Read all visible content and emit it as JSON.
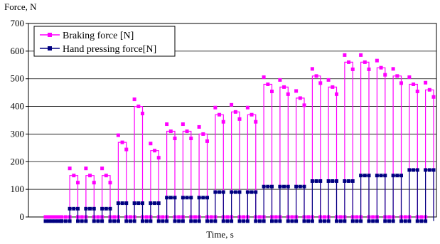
{
  "chart_data": {
    "type": "line",
    "title": "",
    "ylabel": "Force, N",
    "xlabel": "Time, s",
    "ylim": [
      0,
      700
    ],
    "yticks": [
      0,
      100,
      200,
      300,
      400,
      500,
      600,
      700
    ],
    "grid": "horizontal",
    "legend_position": "top-left",
    "series": [
      {
        "name": "Braking force [N]",
        "color": "#ff00ff",
        "marker": "square",
        "steps": [
          {
            "t": 0,
            "v": 0
          },
          {
            "t": 3,
            "v": 0
          },
          {
            "t": 4.5,
            "v": 150
          },
          {
            "t": 6,
            "v": 0
          },
          {
            "t": 7.5,
            "v": 150
          },
          {
            "t": 9,
            "v": 0
          },
          {
            "t": 10.5,
            "v": 150
          },
          {
            "t": 12,
            "v": 0
          },
          {
            "t": 13.5,
            "v": 270
          },
          {
            "t": 15,
            "v": 0
          },
          {
            "t": 16.5,
            "v": 400
          },
          {
            "t": 18,
            "v": 0
          },
          {
            "t": 19.5,
            "v": 240
          },
          {
            "t": 21,
            "v": 0
          },
          {
            "t": 22.5,
            "v": 310
          },
          {
            "t": 24,
            "v": 0
          },
          {
            "t": 25.5,
            "v": 310
          },
          {
            "t": 27,
            "v": 0
          },
          {
            "t": 28.5,
            "v": 300
          },
          {
            "t": 30,
            "v": 0
          },
          {
            "t": 31.5,
            "v": 370
          },
          {
            "t": 33,
            "v": 0
          },
          {
            "t": 34.5,
            "v": 380
          },
          {
            "t": 36,
            "v": 0
          },
          {
            "t": 37.5,
            "v": 370
          },
          {
            "t": 39,
            "v": 0
          },
          {
            "t": 40.5,
            "v": 480
          },
          {
            "t": 42,
            "v": 0
          },
          {
            "t": 43.5,
            "v": 470
          },
          {
            "t": 45,
            "v": 0
          },
          {
            "t": 46.5,
            "v": 430
          },
          {
            "t": 48,
            "v": 0
          },
          {
            "t": 49.5,
            "v": 510
          },
          {
            "t": 51,
            "v": 0
          },
          {
            "t": 52.5,
            "v": 470
          },
          {
            "t": 54,
            "v": 0
          },
          {
            "t": 55.5,
            "v": 560
          },
          {
            "t": 57,
            "v": 0
          },
          {
            "t": 58.5,
            "v": 560
          },
          {
            "t": 60,
            "v": 0
          },
          {
            "t": 61.5,
            "v": 540
          },
          {
            "t": 63,
            "v": 0
          },
          {
            "t": 64.5,
            "v": 510
          },
          {
            "t": 66,
            "v": 0
          },
          {
            "t": 67.5,
            "v": 480
          },
          {
            "t": 69,
            "v": 0
          },
          {
            "t": 70.5,
            "v": 460
          },
          {
            "t": 72,
            "v": 0
          }
        ]
      },
      {
        "name": "Hand pressing force[N]",
        "color": "#000080",
        "marker": "square",
        "steps": [
          {
            "t": 0,
            "v": -15
          },
          {
            "t": 3,
            "v": -15
          },
          {
            "t": 4.5,
            "v": 30
          },
          {
            "t": 6,
            "v": -15
          },
          {
            "t": 7.5,
            "v": 30
          },
          {
            "t": 9,
            "v": -15
          },
          {
            "t": 10.5,
            "v": 30
          },
          {
            "t": 12,
            "v": -15
          },
          {
            "t": 13.5,
            "v": 50
          },
          {
            "t": 15,
            "v": -15
          },
          {
            "t": 16.5,
            "v": 50
          },
          {
            "t": 18,
            "v": -15
          },
          {
            "t": 19.5,
            "v": 50
          },
          {
            "t": 21,
            "v": -15
          },
          {
            "t": 22.5,
            "v": 70
          },
          {
            "t": 24,
            "v": -15
          },
          {
            "t": 25.5,
            "v": 70
          },
          {
            "t": 27,
            "v": -15
          },
          {
            "t": 28.5,
            "v": 70
          },
          {
            "t": 30,
            "v": -15
          },
          {
            "t": 31.5,
            "v": 90
          },
          {
            "t": 33,
            "v": -15
          },
          {
            "t": 34.5,
            "v": 90
          },
          {
            "t": 36,
            "v": -15
          },
          {
            "t": 37.5,
            "v": 90
          },
          {
            "t": 39,
            "v": -15
          },
          {
            "t": 40.5,
            "v": 110
          },
          {
            "t": 42,
            "v": -15
          },
          {
            "t": 43.5,
            "v": 110
          },
          {
            "t": 45,
            "v": -15
          },
          {
            "t": 46.5,
            "v": 110
          },
          {
            "t": 48,
            "v": -15
          },
          {
            "t": 49.5,
            "v": 130
          },
          {
            "t": 51,
            "v": -15
          },
          {
            "t": 52.5,
            "v": 130
          },
          {
            "t": 54,
            "v": -15
          },
          {
            "t": 55.5,
            "v": 130
          },
          {
            "t": 57,
            "v": -15
          },
          {
            "t": 58.5,
            "v": 150
          },
          {
            "t": 60,
            "v": -15
          },
          {
            "t": 61.5,
            "v": 150
          },
          {
            "t": 63,
            "v": -15
          },
          {
            "t": 64.5,
            "v": 150
          },
          {
            "t": 66,
            "v": -15
          },
          {
            "t": 67.5,
            "v": 170
          },
          {
            "t": 69,
            "v": -15
          },
          {
            "t": 70.5,
            "v": 170
          },
          {
            "t": 72,
            "v": -15
          }
        ]
      }
    ]
  }
}
